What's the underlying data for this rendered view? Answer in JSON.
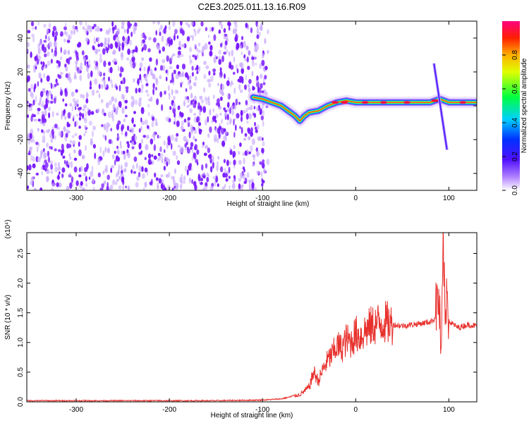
{
  "title": "C2E3.2025.011.13.16.R09",
  "colors": {
    "signal": "#e8302c",
    "dots": "#7a1aff",
    "dots_light": "#c8a8ff"
  },
  "chart_data": [
    {
      "type": "heatmap",
      "panel": "spectrogram",
      "xlabel": "Height of straight line (km)",
      "ylabel": "Frequency (Hz)",
      "xlim": [
        -353,
        130
      ],
      "ylim": [
        -50,
        50
      ],
      "x_ticks": [
        -300,
        -200,
        -100,
        0,
        100
      ],
      "y_ticks": [
        -40,
        -20,
        0,
        20,
        40
      ],
      "colorbar": {
        "label": "Normalized spectral amplitude",
        "range": [
          0,
          1
        ],
        "ticks": [
          0.0,
          0.2,
          0.4,
          0.6,
          0.8
        ],
        "colormap": "rainbow (white-purple-blue-cyan-green-yellow-red-magenta)"
      },
      "noise_region_x": [
        -353,
        -100
      ],
      "ridge": {
        "x": [
          -110,
          -100,
          -90,
          -80,
          -70,
          -65,
          -60,
          -55,
          -50,
          -40,
          -30,
          -20,
          -10,
          0,
          50,
          80,
          85,
          90,
          95,
          100,
          130
        ],
        "y": [
          5,
          4,
          2,
          0,
          -4,
          -6,
          -9,
          -6,
          -4,
          -3,
          0,
          2,
          3,
          2,
          2,
          2,
          3,
          4,
          3,
          2,
          2
        ]
      },
      "spike": {
        "x": [
          84,
          98
        ],
        "y": [
          25,
          -26
        ]
      }
    },
    {
      "type": "line",
      "panel": "snr",
      "xlabel": "Height of straight line (km)",
      "ylabel": "SNR (10 * v/v)",
      "y_exponent": "(x10⁴)",
      "xlim": [
        -353,
        130
      ],
      "ylim": [
        0,
        2.85
      ],
      "x_ticks": [
        -300,
        -200,
        -100,
        0,
        100
      ],
      "y_ticks": [
        0.0,
        0.5,
        1.0,
        1.5,
        2.0,
        2.5
      ],
      "series": [
        {
          "x": [
            -353,
            -300,
            -250,
            -200,
            -150,
            -100,
            -80,
            -60,
            -55,
            -50,
            -45,
            -40,
            -35,
            -30,
            -25,
            -20,
            -15,
            -10,
            -5,
            0,
            5,
            10,
            20,
            30,
            40,
            50,
            60,
            70,
            80,
            85,
            88,
            90,
            92,
            94,
            96,
            98,
            100,
            105,
            110,
            120,
            130
          ],
          "y": [
            0.02,
            0.02,
            0.02,
            0.02,
            0.02,
            0.03,
            0.05,
            0.12,
            0.18,
            0.25,
            0.5,
            0.35,
            0.55,
            0.7,
            0.8,
            0.95,
            0.9,
            1.05,
            1.0,
            1.15,
            1.1,
            1.2,
            1.3,
            1.35,
            1.3,
            1.28,
            1.3,
            1.32,
            1.35,
            1.4,
            1.8,
            1.5,
            0.6,
            2.85,
            1.2,
            2.1,
            1.35,
            1.3,
            1.25,
            1.3,
            1.28
          ]
        }
      ]
    }
  ]
}
